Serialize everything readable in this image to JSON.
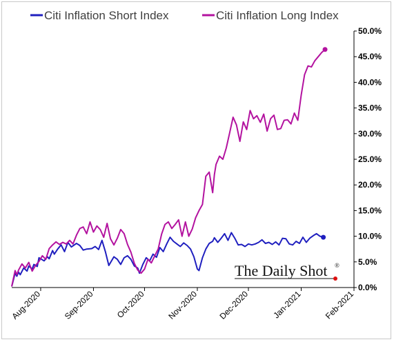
{
  "chart_data": {
    "type": "line",
    "x_ticks": [
      "Aug-2020",
      "Sep-2020",
      "Oct-2020",
      "Nov-2020",
      "Dec-2020",
      "Jan-2021",
      "Feb-2021"
    ],
    "y_ticks": [
      "0.0%",
      "5.0%",
      "10.0%",
      "15.0%",
      "20.0%",
      "25.0%",
      "30.0%",
      "35.0%",
      "40.0%",
      "45.0%",
      "50.0%"
    ],
    "ylim": [
      0,
      50
    ],
    "y_axis_side": "right",
    "xlim": [
      "2020-07-15",
      "2021-02-01"
    ],
    "legend_position": "top",
    "grid": false,
    "series": [
      {
        "name": "Citi Inflation Short Index",
        "color": "#1f1fbf",
        "end_marker": true,
        "x": [
          "2020-07-15",
          "2020-07-16",
          "2020-07-17",
          "2020-07-18",
          "2020-07-19",
          "2020-07-20",
          "2020-07-22",
          "2020-07-24",
          "2020-07-25",
          "2020-07-27",
          "2020-07-28",
          "2020-07-30",
          "2020-07-31",
          "2020-08-03",
          "2020-08-05",
          "2020-08-06",
          "2020-08-08",
          "2020-08-09",
          "2020-08-11",
          "2020-08-13",
          "2020-08-15",
          "2020-08-17",
          "2020-08-19",
          "2020-08-22",
          "2020-08-24",
          "2020-08-26",
          "2020-08-28",
          "2020-08-31",
          "2020-09-02",
          "2020-09-04",
          "2020-09-06",
          "2020-09-08",
          "2020-09-10",
          "2020-09-13",
          "2020-09-15",
          "2020-09-17",
          "2020-09-19",
          "2020-09-21",
          "2020-09-23",
          "2020-09-25",
          "2020-09-27",
          "2020-09-28",
          "2020-09-30",
          "2020-10-02",
          "2020-10-04",
          "2020-10-06",
          "2020-10-08",
          "2020-10-10",
          "2020-10-12",
          "2020-10-14",
          "2020-10-16",
          "2020-10-18",
          "2020-10-20",
          "2020-10-22",
          "2020-10-24",
          "2020-10-26",
          "2020-10-28",
          "2020-10-30",
          "2020-11-01",
          "2020-11-02",
          "2020-11-04",
          "2020-11-06",
          "2020-11-08",
          "2020-11-10",
          "2020-11-11",
          "2020-11-13",
          "2020-11-15",
          "2020-11-17",
          "2020-11-19",
          "2020-11-21",
          "2020-11-23",
          "2020-11-25",
          "2020-11-27",
          "2020-11-29",
          "2020-12-01",
          "2020-12-03",
          "2020-12-05",
          "2020-12-07",
          "2020-12-09",
          "2020-12-11",
          "2020-12-13",
          "2020-12-15",
          "2020-12-17",
          "2020-12-19",
          "2020-12-21",
          "2020-12-23",
          "2020-12-25",
          "2020-12-27",
          "2020-12-29",
          "2020-12-31",
          "2021-01-02",
          "2021-01-04",
          "2021-01-06",
          "2021-01-08",
          "2021-01-10",
          "2021-01-12",
          "2021-01-14"
        ],
        "values": [
          0.2,
          1.5,
          2.8,
          2.2,
          3.0,
          2.5,
          3.8,
          3.2,
          4.2,
          3.6,
          4.5,
          4.1,
          5.8,
          5.2,
          6.0,
          5.6,
          7.2,
          6.5,
          7.5,
          8.3,
          7.0,
          8.8,
          7.9,
          8.6,
          8.2,
          7.3,
          7.5,
          7.6,
          8.0,
          7.4,
          9.2,
          7.0,
          4.3,
          6.0,
          5.5,
          4.5,
          5.8,
          6.2,
          5.5,
          4.2,
          3.8,
          2.8,
          4.5,
          5.8,
          5.2,
          6.5,
          5.9,
          7.8,
          7.0,
          8.5,
          9.8,
          9.0,
          8.5,
          8.0,
          8.7,
          8.2,
          7.5,
          6.0,
          3.6,
          3.3,
          5.8,
          7.5,
          8.6,
          9.0,
          9.7,
          8.8,
          9.6,
          10.5,
          9.2,
          10.7,
          9.6,
          8.3,
          8.4,
          8.0,
          8.5,
          8.3,
          8.5,
          8.8,
          9.3,
          8.6,
          8.8,
          8.4,
          8.9,
          8.3,
          9.6,
          9.5,
          8.5,
          8.3,
          9.0,
          8.6,
          9.8,
          8.8,
          9.6,
          10.1,
          10.5,
          10.0,
          9.8
        ]
      },
      {
        "name": "Citi Inflation Long Index",
        "color": "#b3129f",
        "end_marker": true,
        "x": [
          "2020-07-15",
          "2020-07-16",
          "2020-07-17",
          "2020-07-18",
          "2020-07-19",
          "2020-07-21",
          "2020-07-23",
          "2020-07-25",
          "2020-07-27",
          "2020-07-29",
          "2020-07-31",
          "2020-08-02",
          "2020-08-04",
          "2020-08-06",
          "2020-08-08",
          "2020-08-10",
          "2020-08-12",
          "2020-08-14",
          "2020-08-16",
          "2020-08-18",
          "2020-08-20",
          "2020-08-22",
          "2020-08-24",
          "2020-08-26",
          "2020-08-28",
          "2020-08-30",
          "2020-09-01",
          "2020-09-03",
          "2020-09-05",
          "2020-09-07",
          "2020-09-09",
          "2020-09-11",
          "2020-09-13",
          "2020-09-15",
          "2020-09-17",
          "2020-09-19",
          "2020-09-21",
          "2020-09-23",
          "2020-09-25",
          "2020-09-27",
          "2020-09-29",
          "2020-10-01",
          "2020-10-03",
          "2020-10-05",
          "2020-10-07",
          "2020-10-09",
          "2020-10-11",
          "2020-10-13",
          "2020-10-15",
          "2020-10-17",
          "2020-10-19",
          "2020-10-21",
          "2020-10-23",
          "2020-10-25",
          "2020-10-27",
          "2020-10-29",
          "2020-10-31",
          "2020-11-02",
          "2020-11-04",
          "2020-11-06",
          "2020-11-08",
          "2020-11-10",
          "2020-11-11",
          "2020-11-12",
          "2020-11-14",
          "2020-11-16",
          "2020-11-18",
          "2020-11-20",
          "2020-11-22",
          "2020-11-24",
          "2020-11-26",
          "2020-11-28",
          "2020-11-30",
          "2020-12-02",
          "2020-12-04",
          "2020-12-06",
          "2020-12-08",
          "2020-12-10",
          "2020-12-12",
          "2020-12-14",
          "2020-12-16",
          "2020-12-18",
          "2020-12-20",
          "2020-12-22",
          "2020-12-24",
          "2020-12-26",
          "2020-12-28",
          "2020-12-30",
          "2021-01-01",
          "2021-01-03",
          "2021-01-05",
          "2021-01-07",
          "2021-01-09",
          "2021-01-11",
          "2021-01-13",
          "2021-01-15"
        ],
        "values": [
          0.2,
          1.8,
          3.3,
          2.5,
          3.4,
          4.6,
          3.8,
          4.9,
          3.2,
          4.3,
          5.1,
          6.2,
          5.5,
          7.6,
          8.3,
          8.9,
          8.4,
          8.8,
          8.5,
          9.2,
          8.5,
          10.2,
          11.5,
          11.8,
          10.5,
          12.8,
          10.8,
          12.0,
          11.3,
          9.8,
          12.5,
          9.5,
          8.3,
          9.6,
          11.3,
          10.5,
          8.4,
          6.9,
          4.7,
          3.4,
          2.8,
          3.6,
          5.5,
          4.8,
          6.2,
          7.5,
          10.4,
          12.3,
          12.8,
          11.5,
          12.3,
          13.2,
          10.0,
          12.8,
          10.0,
          11.4,
          13.6,
          15.0,
          16.2,
          21.7,
          22.5,
          18.5,
          22.0,
          24.0,
          25.6,
          25.0,
          27.2,
          30.2,
          33.2,
          31.7,
          28.5,
          32.3,
          30.8,
          34.5,
          32.9,
          33.5,
          32.2,
          33.8,
          30.5,
          32.9,
          33.6,
          30.8,
          31.0,
          32.6,
          32.7,
          31.9,
          34.0,
          32.6,
          37.5,
          41.5,
          43.2,
          43.0,
          44.2,
          45.0,
          45.8,
          46.4
        ]
      }
    ]
  },
  "legend": {
    "short": "Citi Inflation Short Index",
    "long": "Citi Inflation Long Index"
  },
  "watermark": {
    "text": "The Daily Shot",
    "reg": "®"
  }
}
